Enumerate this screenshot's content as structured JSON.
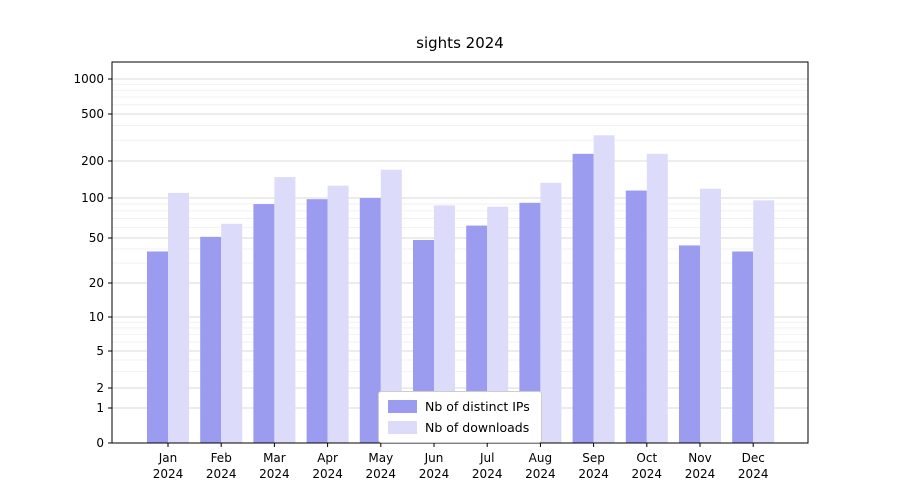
{
  "chart_data": {
    "type": "bar",
    "scale": "symlog",
    "title": "sights 2024",
    "xlabel": "",
    "ylabel": "",
    "year_label": "2024",
    "categories": [
      "Jan",
      "Feb",
      "Mar",
      "Apr",
      "May",
      "Jun",
      "Jul",
      "Aug",
      "Sep",
      "Oct",
      "Nov",
      "Dec"
    ],
    "yticks": [
      0,
      1,
      2,
      5,
      10,
      20,
      50,
      100,
      200,
      500,
      1000
    ],
    "ylim": [
      0,
      1400
    ],
    "grid": "horizontal",
    "legend_position": "lower-center-inside",
    "series": [
      {
        "name": "Nb of distinct IPs",
        "color": "#9b9bf0",
        "values": [
          38,
          51,
          90,
          98,
          100,
          48,
          62,
          92,
          230,
          115,
          43,
          38
        ]
      },
      {
        "name": "Nb of downloads",
        "color": "#dcdcfa",
        "values": [
          110,
          64,
          148,
          126,
          170,
          88,
          86,
          133,
          330,
          230,
          119,
          96
        ]
      }
    ]
  },
  "colors": {
    "major_grid": "#d9d9d9",
    "minor_grid": "#efefef",
    "spine": "#000000",
    "tick_label": "#000000"
  }
}
